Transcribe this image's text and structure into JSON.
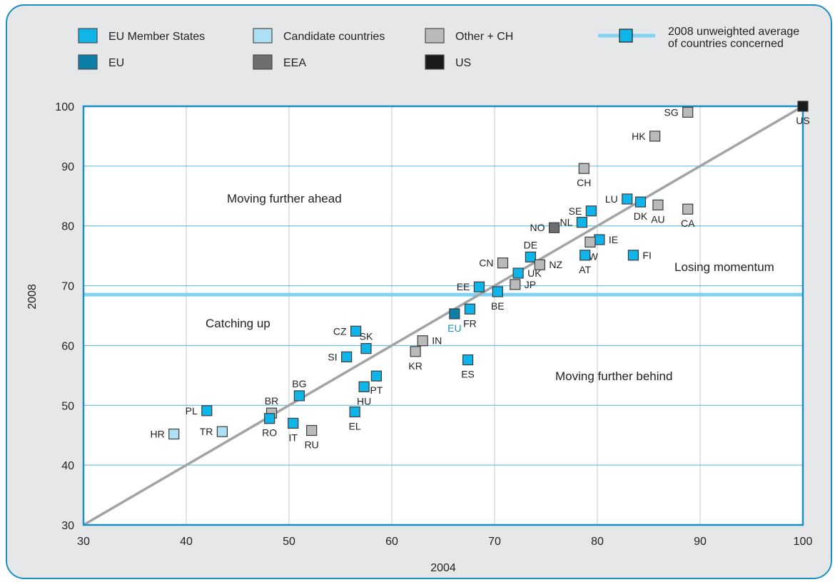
{
  "colors": {
    "eu_member": "#0fb4e8",
    "candidate": "#aee0f5",
    "other": "#b9babb",
    "eu": "#0c7fa9",
    "eea": "#6d6e70",
    "us": "#1a1a1a",
    "avg_line": "#7fd3f2",
    "diag_line": "#a2a3a5",
    "grid": "#4db6df",
    "axis_frame": "#1b8fc4",
    "eu_label": "#1b8fc4"
  },
  "legend": [
    {
      "label": "EU Member States",
      "category": "eu_member"
    },
    {
      "label": "Candidate countries",
      "category": "candidate"
    },
    {
      "label": "Other + CH",
      "category": "other"
    },
    {
      "label": "EU",
      "category": "eu"
    },
    {
      "label": "EEA",
      "category": "eea"
    },
    {
      "label": "US",
      "category": "us"
    }
  ],
  "avg_legend": {
    "line1": "2008 unweighted average",
    "line2": "of countries concerned"
  },
  "annotations": [
    "Moving further ahead",
    "Catching up",
    "Losing momentum",
    "Moving further behind"
  ],
  "chart_data": {
    "type": "scatter",
    "xlabel": "2004",
    "ylabel": "2008",
    "xlim": [
      30,
      100
    ],
    "ylim": [
      30,
      100
    ],
    "xticks": [
      30,
      40,
      50,
      60,
      70,
      80,
      90,
      100
    ],
    "yticks": [
      30,
      40,
      50,
      60,
      70,
      80,
      90,
      100
    ],
    "grid": true,
    "legend_position": "top",
    "average_2008": 68.5,
    "diagonal": "y = x",
    "points": [
      {
        "label": "SG",
        "x": 88.8,
        "y": 99.0,
        "category": "other"
      },
      {
        "label": "US",
        "x": 100.0,
        "y": 100.0,
        "category": "us"
      },
      {
        "label": "HK",
        "x": 85.6,
        "y": 95.0,
        "category": "other"
      },
      {
        "label": "CH",
        "x": 78.7,
        "y": 89.6,
        "category": "other"
      },
      {
        "label": "LU",
        "x": 82.9,
        "y": 84.5,
        "category": "eu_member"
      },
      {
        "label": "DK",
        "x": 84.2,
        "y": 84.0,
        "category": "eu_member"
      },
      {
        "label": "AU",
        "x": 85.9,
        "y": 83.5,
        "category": "other"
      },
      {
        "label": "CA",
        "x": 88.8,
        "y": 82.8,
        "category": "other"
      },
      {
        "label": "SE",
        "x": 79.4,
        "y": 82.5,
        "category": "eu_member"
      },
      {
        "label": "NL",
        "x": 78.5,
        "y": 80.6,
        "category": "eu_member"
      },
      {
        "label": "NO",
        "x": 75.8,
        "y": 79.7,
        "category": "eea"
      },
      {
        "label": "IE",
        "x": 80.2,
        "y": 77.7,
        "category": "eu_member"
      },
      {
        "label": "TW",
        "x": 79.3,
        "y": 77.3,
        "category": "other"
      },
      {
        "label": "AT",
        "x": 78.8,
        "y": 75.1,
        "category": "eu_member"
      },
      {
        "label": "FI",
        "x": 83.5,
        "y": 75.1,
        "category": "eu_member"
      },
      {
        "label": "DE",
        "x": 73.5,
        "y": 74.8,
        "category": "eu_member"
      },
      {
        "label": "CN",
        "x": 70.8,
        "y": 73.8,
        "category": "other"
      },
      {
        "label": "NZ",
        "x": 74.4,
        "y": 73.5,
        "category": "other"
      },
      {
        "label": "UK",
        "x": 72.3,
        "y": 72.1,
        "category": "eu_member"
      },
      {
        "label": "JP",
        "x": 72.0,
        "y": 70.2,
        "category": "other"
      },
      {
        "label": "EE",
        "x": 68.5,
        "y": 69.8,
        "category": "eu_member"
      },
      {
        "label": "BE",
        "x": 70.3,
        "y": 69.0,
        "category": "eu_member"
      },
      {
        "label": "FR",
        "x": 67.6,
        "y": 66.1,
        "category": "eu_member"
      },
      {
        "label": "EU",
        "x": 66.1,
        "y": 65.3,
        "category": "eu"
      },
      {
        "label": "CZ",
        "x": 56.5,
        "y": 62.4,
        "category": "eu_member"
      },
      {
        "label": "IN",
        "x": 63.0,
        "y": 60.8,
        "category": "other"
      },
      {
        "label": "SK",
        "x": 57.5,
        "y": 59.5,
        "category": "eu_member"
      },
      {
        "label": "KR",
        "x": 62.3,
        "y": 59.0,
        "category": "other"
      },
      {
        "label": "SI",
        "x": 55.6,
        "y": 58.1,
        "category": "eu_member"
      },
      {
        "label": "ES",
        "x": 67.4,
        "y": 57.6,
        "category": "eu_member"
      },
      {
        "label": "PT",
        "x": 58.5,
        "y": 54.9,
        "category": "eu_member"
      },
      {
        "label": "HU",
        "x": 57.3,
        "y": 53.1,
        "category": "eu_member"
      },
      {
        "label": "BG",
        "x": 51.0,
        "y": 51.6,
        "category": "eu_member"
      },
      {
        "label": "PL",
        "x": 42.0,
        "y": 49.1,
        "category": "eu_member"
      },
      {
        "label": "BR",
        "x": 48.3,
        "y": 48.7,
        "category": "other"
      },
      {
        "label": "EL",
        "x": 56.4,
        "y": 48.9,
        "category": "eu_member"
      },
      {
        "label": "RO",
        "x": 48.1,
        "y": 47.8,
        "category": "eu_member"
      },
      {
        "label": "IT",
        "x": 50.4,
        "y": 47.0,
        "category": "eu_member"
      },
      {
        "label": "TR",
        "x": 43.5,
        "y": 45.6,
        "category": "candidate"
      },
      {
        "label": "RU",
        "x": 52.2,
        "y": 45.8,
        "category": "other"
      },
      {
        "label": "HR",
        "x": 38.8,
        "y": 45.2,
        "category": "candidate"
      }
    ]
  }
}
